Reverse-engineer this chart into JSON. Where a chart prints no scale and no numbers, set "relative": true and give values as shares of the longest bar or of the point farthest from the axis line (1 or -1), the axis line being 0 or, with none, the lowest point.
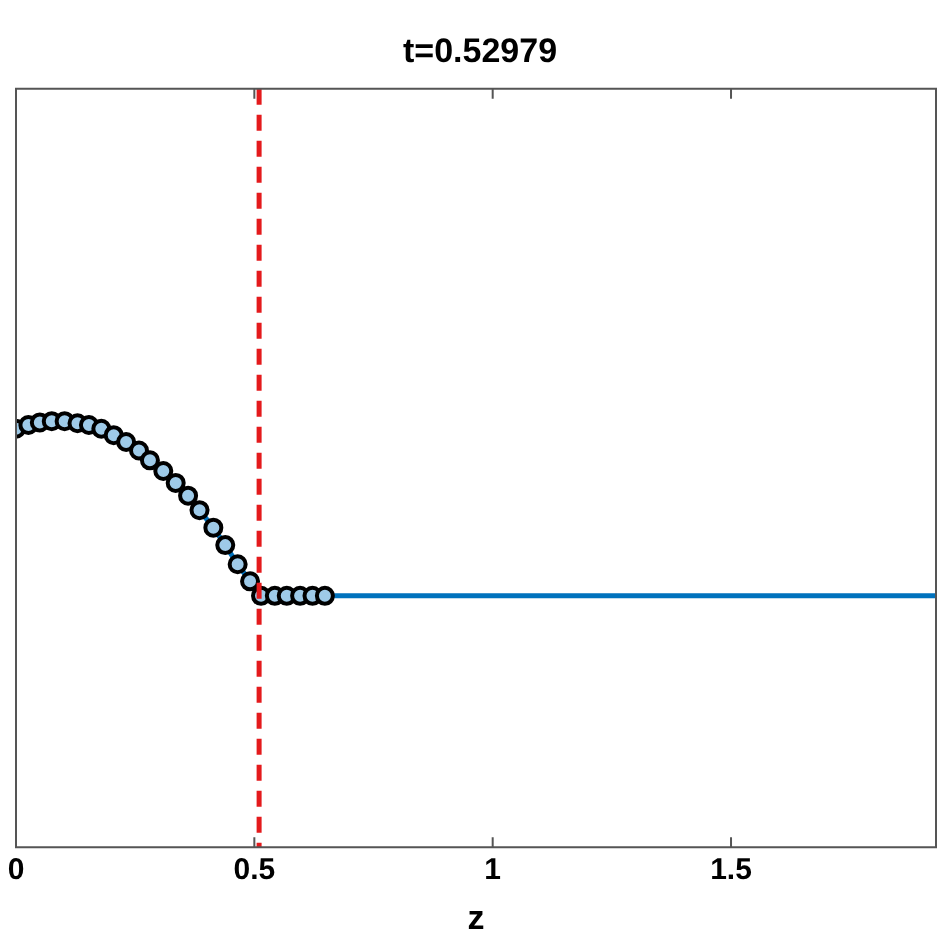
{
  "chart_data": {
    "type": "line",
    "title": "t=0.52979",
    "xlabel": "z",
    "relative": true,
    "xlim": [
      0,
      1.93
    ],
    "xticks": [
      0,
      0.5,
      1,
      1.5
    ],
    "series": [
      {
        "color": "#0072bd",
        "x": [
          0,
          0.026,
          0.05,
          0.075,
          0.102,
          0.129,
          0.153,
          0.179,
          0.205,
          0.231,
          0.258,
          0.281,
          0.309,
          0.335,
          0.361,
          0.385,
          0.414,
          0.439,
          0.465,
          0.491,
          0.514,
          0.543,
          0.568,
          0.596,
          0.622,
          0.648,
          1.93
        ],
        "values": [
          0.982,
          0.991,
          0.997,
          1,
          1,
          0.995,
          0.991,
          0.982,
          0.967,
          0.951,
          0.931,
          0.908,
          0.883,
          0.855,
          0.825,
          0.791,
          0.75,
          0.709,
          0.664,
          0.624,
          0.59,
          0.59,
          0.59,
          0.59,
          0.59,
          0.59,
          0.59
        ]
      },
      {
        "type": "scatter",
        "color": "#000000",
        "marker": "circle",
        "x": [
          0,
          0.026,
          0.05,
          0.075,
          0.102,
          0.129,
          0.153,
          0.179,
          0.205,
          0.231,
          0.258,
          0.281,
          0.309,
          0.335,
          0.361,
          0.385,
          0.414,
          0.439,
          0.465,
          0.491,
          0.514,
          0.543,
          0.568,
          0.596,
          0.622,
          0.648
        ],
        "values": [
          0.982,
          0.991,
          0.997,
          1,
          1,
          0.995,
          0.991,
          0.982,
          0.967,
          0.951,
          0.931,
          0.908,
          0.883,
          0.855,
          0.825,
          0.791,
          0.75,
          0.709,
          0.664,
          0.624,
          0.59,
          0.59,
          0.59,
          0.59,
          0.59,
          0.59
        ]
      }
    ],
    "ref_lines": [
      {
        "axis": "x",
        "value": 0.51,
        "color": "#e41a1c",
        "line_style": "dashed"
      }
    ],
    "grid": false,
    "legend": false
  }
}
